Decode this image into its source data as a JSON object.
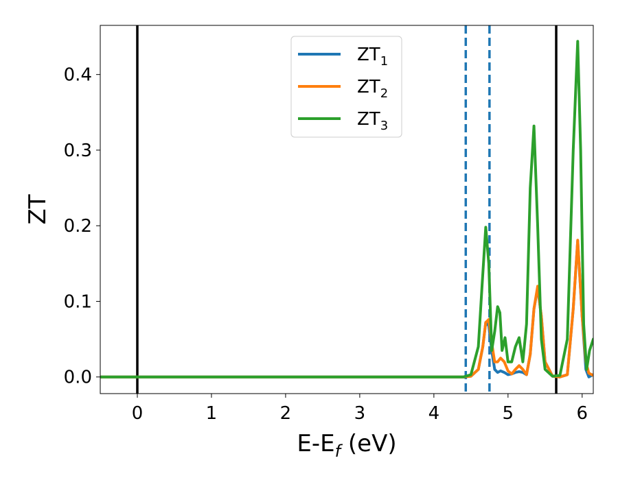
{
  "chart_data": {
    "type": "line",
    "xlabel": "E-E",
    "xlabel_sub": "f",
    "xlabel_unit": " (eV)",
    "ylabel": "ZT",
    "xlim": [
      -0.5,
      6.15
    ],
    "ylim": [
      -0.022,
      0.465
    ],
    "xticks": [
      0,
      1,
      2,
      3,
      4,
      5,
      6
    ],
    "xtick_labels": [
      "0",
      "1",
      "2",
      "3",
      "4",
      "5",
      "6"
    ],
    "yticks": [
      0.0,
      0.1,
      0.2,
      0.3,
      0.4
    ],
    "ytick_labels": [
      "0.0",
      "0.1",
      "0.2",
      "0.3",
      "0.4"
    ],
    "grid": false,
    "legend_position": "top-center",
    "vertical_lines": [
      {
        "x": 0.0,
        "style": "solid",
        "color": "#000000"
      },
      {
        "x": 4.43,
        "style": "dashed",
        "color": "#1f77b4"
      },
      {
        "x": 4.75,
        "style": "dashed",
        "color": "#1f77b4"
      },
      {
        "x": 5.65,
        "style": "solid",
        "color": "#000000"
      }
    ],
    "series": [
      {
        "name": "ZT",
        "name_sub": "1",
        "color": "#1f77b4",
        "x": [
          -0.5,
          4.4,
          4.5,
          4.6,
          4.66,
          4.7,
          4.74,
          4.78,
          4.82,
          4.86,
          4.9,
          4.95,
          5.0,
          5.05,
          5.1,
          5.15,
          5.2,
          5.25,
          5.3,
          5.35,
          5.4,
          5.45,
          5.5,
          5.6,
          5.7,
          5.8,
          5.88,
          5.94,
          6.0,
          6.05,
          6.09,
          6.15
        ],
        "y": [
          0.0,
          0.0,
          0.001,
          0.01,
          0.04,
          0.072,
          0.068,
          0.035,
          0.01,
          0.006,
          0.008,
          0.006,
          0.003,
          0.004,
          0.006,
          0.007,
          0.006,
          0.003,
          0.03,
          0.09,
          0.118,
          0.08,
          0.02,
          0.001,
          0.0,
          0.003,
          0.09,
          0.18,
          0.08,
          0.01,
          0.0,
          0.003
        ]
      },
      {
        "name": "ZT",
        "name_sub": "2",
        "color": "#ff7f0e",
        "x": [
          -0.5,
          4.4,
          4.5,
          4.6,
          4.66,
          4.7,
          4.74,
          4.78,
          4.82,
          4.86,
          4.9,
          4.95,
          5.0,
          5.05,
          5.1,
          5.15,
          5.2,
          5.25,
          5.3,
          5.35,
          5.4,
          5.45,
          5.5,
          5.6,
          5.7,
          5.8,
          5.88,
          5.94,
          6.0,
          6.05,
          6.09,
          6.15
        ],
        "y": [
          0.0,
          0.0,
          0.001,
          0.01,
          0.04,
          0.072,
          0.076,
          0.045,
          0.02,
          0.02,
          0.025,
          0.02,
          0.008,
          0.004,
          0.01,
          0.015,
          0.01,
          0.003,
          0.03,
          0.09,
          0.12,
          0.08,
          0.02,
          0.001,
          0.0,
          0.003,
          0.09,
          0.181,
          0.08,
          0.02,
          0.005,
          0.002
        ]
      },
      {
        "name": "ZT",
        "name_sub": "3",
        "color": "#2ca02c",
        "x": [
          -0.5,
          4.4,
          4.5,
          4.6,
          4.65,
          4.7,
          4.74,
          4.78,
          4.82,
          4.86,
          4.89,
          4.92,
          4.96,
          5.0,
          5.05,
          5.1,
          5.15,
          5.2,
          5.25,
          5.3,
          5.35,
          5.4,
          5.45,
          5.5,
          5.6,
          5.7,
          5.8,
          5.88,
          5.94,
          5.98,
          6.02,
          6.06,
          6.1,
          6.15
        ],
        "y": [
          0.0,
          0.0,
          0.003,
          0.04,
          0.12,
          0.198,
          0.15,
          0.035,
          0.06,
          0.093,
          0.085,
          0.035,
          0.052,
          0.02,
          0.02,
          0.04,
          0.052,
          0.02,
          0.07,
          0.25,
          0.332,
          0.2,
          0.05,
          0.01,
          0.001,
          0.002,
          0.05,
          0.3,
          0.444,
          0.3,
          0.07,
          0.01,
          0.035,
          0.05
        ]
      }
    ]
  }
}
